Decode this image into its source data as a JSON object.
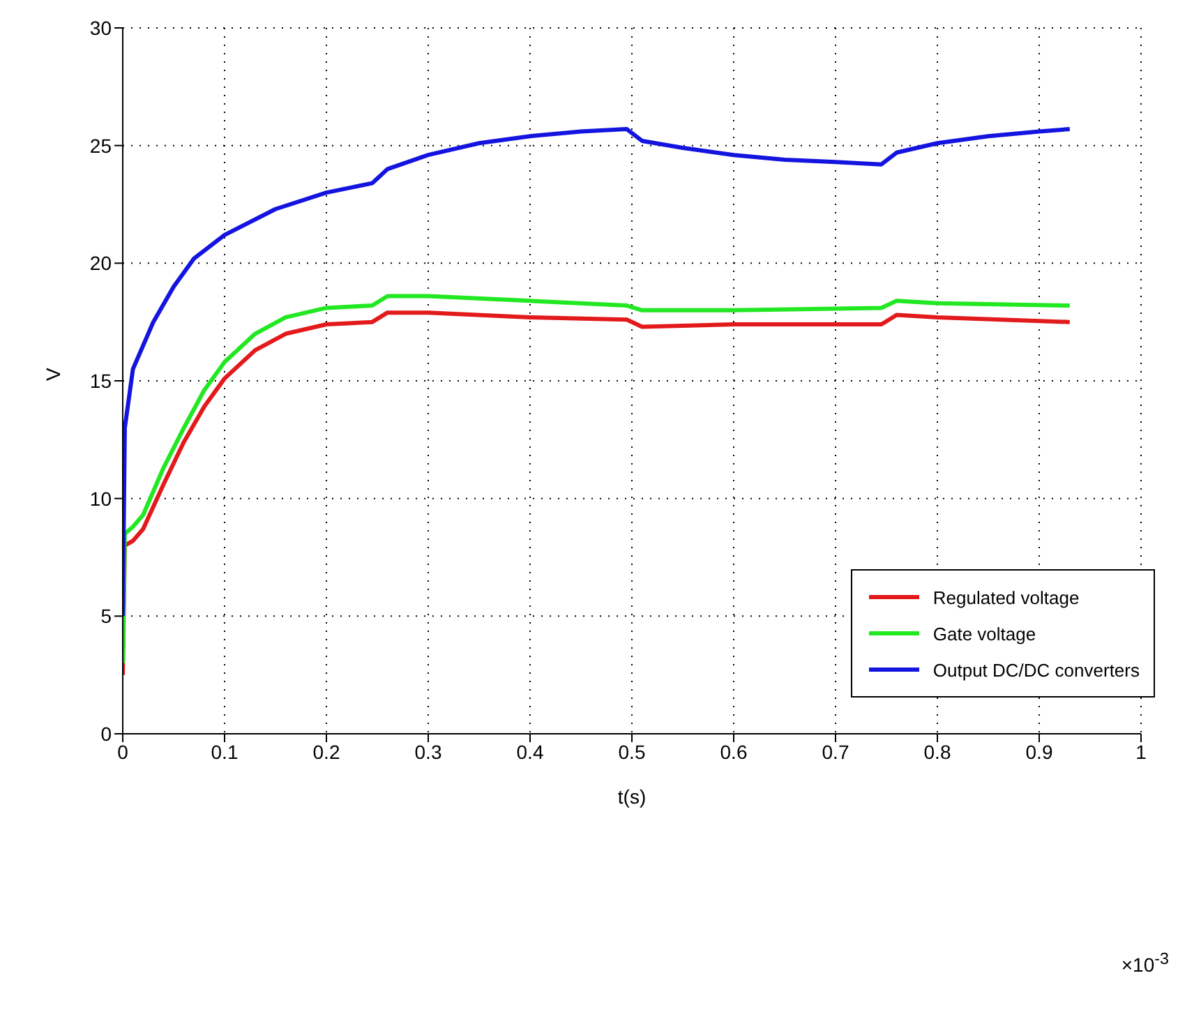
{
  "chart_data": {
    "type": "line",
    "xlabel": "t(s)",
    "ylabel": "V",
    "xlim": [
      0,
      1
    ],
    "xticks": [
      0,
      0.1,
      0.2,
      0.3,
      0.4,
      0.5,
      0.6,
      0.7,
      0.8,
      0.9,
      1
    ],
    "ylim": [
      0,
      30
    ],
    "yticks": [
      0,
      5,
      10,
      15,
      20,
      25,
      30
    ],
    "grid": true,
    "legend": "right",
    "line_style": "solid",
    "annotations": [
      "×10$^{-3}$"
    ],
    "series": [
      {
        "name": "Regulated voltage",
        "color": "#e31a1c",
        "x": [
          0,
          0.002,
          0.01,
          0.02,
          0.04,
          0.06,
          0.08,
          0.1,
          0.13,
          0.16,
          0.2,
          0.245,
          0.26,
          0.3,
          0.4,
          0.495,
          0.51,
          0.6,
          0.745,
          0.76,
          0.8,
          0.93
        ],
        "values": [
          2.5,
          8,
          8.2,
          8.7,
          10.6,
          12.4,
          13.9,
          15.1,
          16.3,
          17,
          17.4,
          17.5,
          17.9,
          17.9,
          17.7,
          17.6,
          17.3,
          17.4,
          17.4,
          17.8,
          17.7,
          17.5
        ]
      },
      {
        "name": "Gate voltage",
        "color": "#22e822",
        "x": [
          0,
          0.002,
          0.01,
          0.02,
          0.04,
          0.06,
          0.08,
          0.1,
          0.13,
          0.16,
          0.2,
          0.245,
          0.26,
          0.3,
          0.4,
          0.495,
          0.51,
          0.6,
          0.745,
          0.76,
          0.8,
          0.93
        ],
        "values": [
          3,
          8.5,
          8.8,
          9.3,
          11.3,
          13,
          14.6,
          15.8,
          17,
          17.7,
          18.1,
          18.2,
          18.6,
          18.6,
          18.4,
          18.2,
          18,
          18,
          18.1,
          18.4,
          18.3,
          18.2
        ]
      },
      {
        "name": "Output DC/DC converters",
        "color": "#1414e0",
        "x": [
          0,
          0.002,
          0.01,
          0.03,
          0.05,
          0.07,
          0.1,
          0.15,
          0.2,
          0.245,
          0.26,
          0.3,
          0.35,
          0.4,
          0.45,
          0.495,
          0.51,
          0.55,
          0.6,
          0.65,
          0.7,
          0.745,
          0.76,
          0.8,
          0.85,
          0.9,
          0.93
        ],
        "values": [
          5,
          13,
          15.5,
          17.5,
          19,
          20.2,
          21.2,
          22.3,
          23,
          23.4,
          24,
          24.6,
          25.1,
          25.4,
          25.6,
          25.7,
          25.2,
          24.9,
          24.6,
          24.4,
          24.3,
          24.2,
          24.7,
          25.1,
          25.4,
          25.6,
          25.7
        ]
      }
    ]
  }
}
